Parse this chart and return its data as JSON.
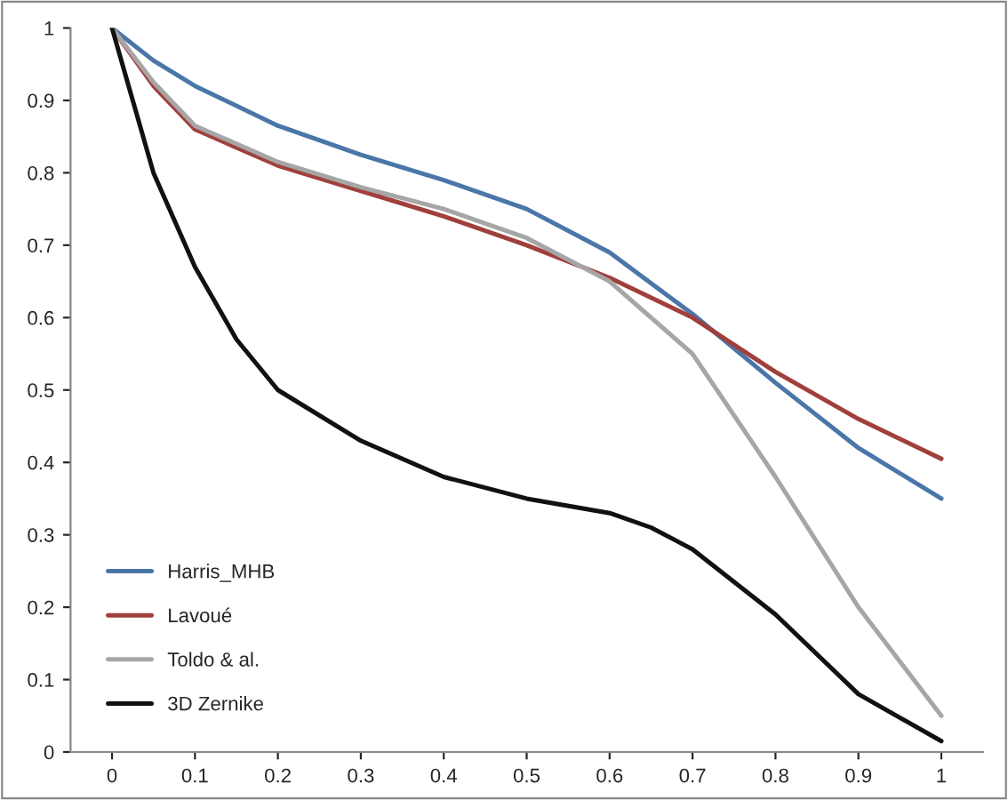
{
  "chart_data": {
    "type": "line",
    "xlim": [
      -0.05,
      1.05
    ],
    "ylim": [
      0,
      1
    ],
    "xticks": [
      0,
      0.1,
      0.2,
      0.3,
      0.4,
      0.5,
      0.6,
      0.7,
      0.8,
      0.9,
      1
    ],
    "yticks": [
      0,
      0.1,
      0.2,
      0.3,
      0.4,
      0.5,
      0.6,
      0.7,
      0.8,
      0.9,
      1
    ],
    "grid": false,
    "legend": "bottom left",
    "marker": "none",
    "line_style": "solid",
    "series": [
      {
        "name": "Harris_MHB",
        "color": "#4a76a8",
        "x": [
          0,
          0.05,
          0.1,
          0.2,
          0.3,
          0.4,
          0.5,
          0.6,
          0.7,
          0.8,
          0.9,
          1
        ],
        "values": [
          1,
          0.955,
          0.92,
          0.865,
          0.825,
          0.79,
          0.75,
          0.69,
          0.605,
          0.51,
          0.42,
          0.35
        ]
      },
      {
        "name": "Lavoué",
        "color": "#a0403c",
        "x": [
          0,
          0.05,
          0.1,
          0.2,
          0.3,
          0.4,
          0.5,
          0.6,
          0.7,
          0.8,
          0.9,
          1
        ],
        "values": [
          1,
          0.92,
          0.86,
          0.81,
          0.775,
          0.74,
          0.7,
          0.655,
          0.6,
          0.525,
          0.46,
          0.405
        ]
      },
      {
        "name": "Toldo & al.",
        "color": "#a6a6a6",
        "x": [
          0,
          0.05,
          0.1,
          0.2,
          0.3,
          0.4,
          0.5,
          0.6,
          0.7,
          0.8,
          0.9,
          1
        ],
        "values": [
          1,
          0.925,
          0.865,
          0.815,
          0.78,
          0.75,
          0.71,
          0.65,
          0.55,
          0.38,
          0.2,
          0.05
        ]
      },
      {
        "name": "3D Zernike",
        "color": "#111111",
        "x": [
          0,
          0.025,
          0.05,
          0.1,
          0.15,
          0.2,
          0.3,
          0.4,
          0.5,
          0.6,
          0.65,
          0.7,
          0.8,
          0.9,
          1
        ],
        "values": [
          1,
          0.9,
          0.8,
          0.67,
          0.57,
          0.5,
          0.43,
          0.38,
          0.35,
          0.33,
          0.31,
          0.28,
          0.19,
          0.08,
          0.015
        ]
      }
    ]
  }
}
